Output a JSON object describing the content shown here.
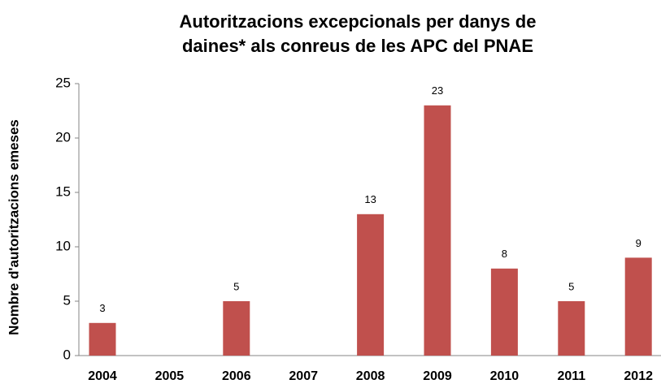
{
  "chart_data": {
    "type": "bar",
    "title": [
      "Autoritzacions excepcionals per danys de",
      "daines* als conreus de les APC del PNAE"
    ],
    "y_label": "Nombre d'autoritzacions emeses",
    "categories": [
      "2004",
      "2005",
      "2006",
      "2007",
      "2008",
      "2009",
      "2010",
      "2011",
      "2012"
    ],
    "values": [
      3,
      0,
      5,
      0,
      13,
      23,
      8,
      5,
      9
    ],
    "value_labels": [
      "3",
      null,
      "5",
      null,
      "13",
      "23",
      "8",
      "5",
      "9"
    ],
    "color": "#c0504d",
    "ylim": [
      0,
      25
    ],
    "yticks": [
      0,
      5,
      10,
      15,
      20,
      25
    ],
    "grid": false
  }
}
